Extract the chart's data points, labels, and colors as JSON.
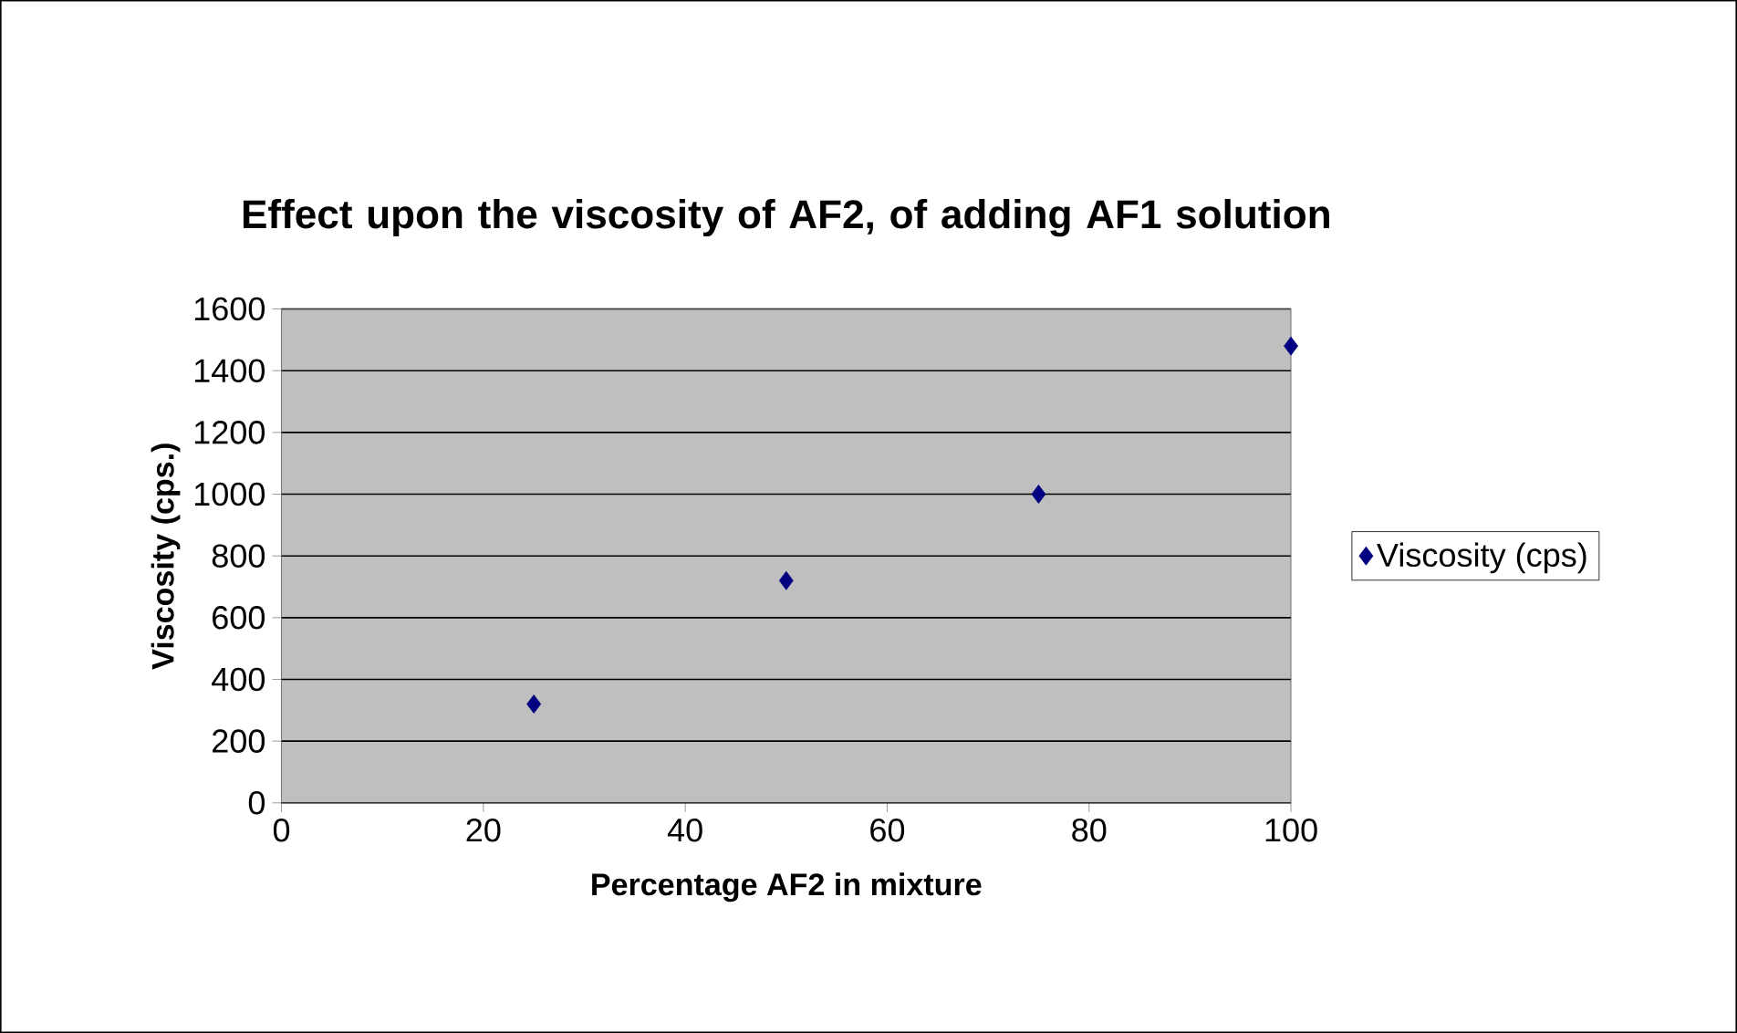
{
  "chart_data": {
    "type": "scatter",
    "title": "Effect upon the viscosity of AF2, of adding AF1 solution",
    "xlabel": "Percentage AF2 in mixture",
    "ylabel": "Viscosity (cps.)",
    "series": [
      {
        "name": "Viscosity (cps)",
        "color": "#000080",
        "x": [
          25,
          50,
          75,
          100
        ],
        "values": [
          320,
          720,
          1000,
          1480
        ]
      }
    ],
    "xlim": [
      0,
      100
    ],
    "xticks": [
      0,
      20,
      40,
      60,
      80,
      100
    ],
    "ylim": [
      0,
      1600
    ],
    "yticks": [
      0,
      200,
      400,
      600,
      800,
      1000,
      1200,
      1400,
      1600
    ],
    "grid": "y",
    "legend": "right",
    "marker": "diamond"
  }
}
